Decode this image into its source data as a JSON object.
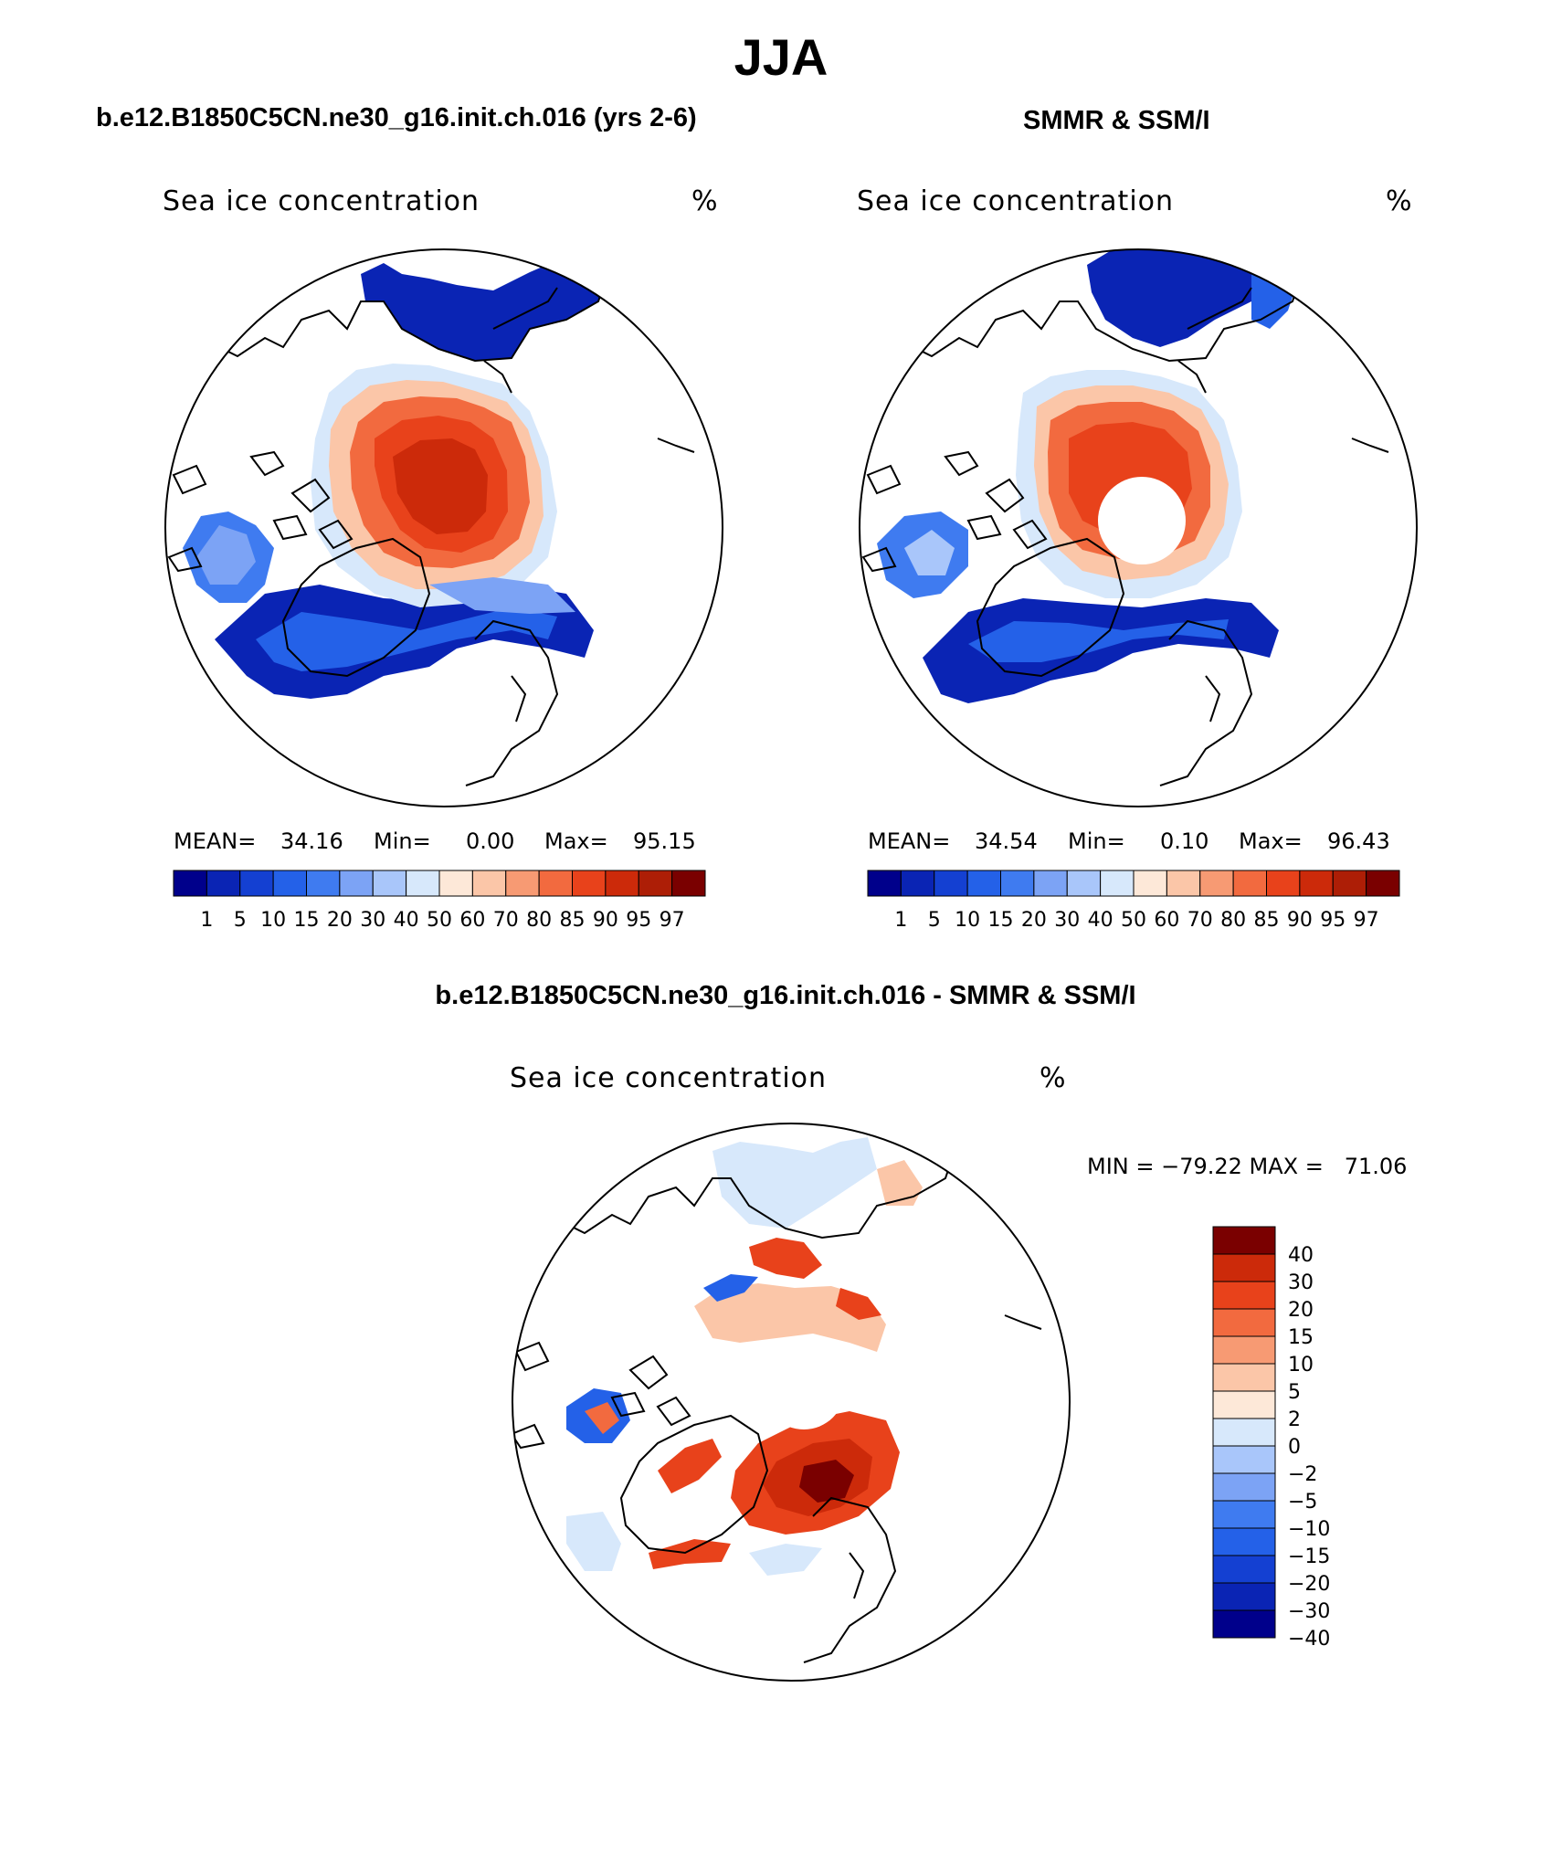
{
  "figure": {
    "title": "JJA",
    "colors": {
      "ice_scale": [
        "#00008b",
        "#0a24b4",
        "#1440d2",
        "#2461e8",
        "#3f7bf0",
        "#7ca3f5",
        "#a9c6fa",
        "#d7e8fb",
        "#fde8d8",
        "#fbc6a8",
        "#f79a73",
        "#f26a3f",
        "#e8421b",
        "#cc2a0a",
        "#ad1e06",
        "#7a0000"
      ],
      "diff_scale": [
        "#00008b",
        "#0a24b4",
        "#1440d2",
        "#2461e8",
        "#3f7bf0",
        "#7ca3f5",
        "#a9c6fa",
        "#d7e8fb",
        "#fde8d8",
        "#fbc6a8",
        "#f79a73",
        "#f26a3f",
        "#e8421b",
        "#cc2a0a",
        "#7a0000"
      ],
      "land_outline": "#000000",
      "ocean": "#ffffff"
    }
  },
  "panels": {
    "model": {
      "title": "b.e12.B1850C5CN.ne30_g16.init.ch.016 (yrs 2-6)",
      "variable": "Sea ice concentration",
      "units": "%",
      "stats": {
        "mean_label": "MEAN=",
        "mean": "34.16",
        "min_label": "Min=",
        "min": "0.00",
        "max_label": "Max=",
        "max": "95.15"
      },
      "colorbar_labels": [
        "1",
        "5",
        "10",
        "15",
        "20",
        "30",
        "40",
        "50",
        "60",
        "70",
        "80",
        "85",
        "90",
        "95",
        "97"
      ]
    },
    "obs": {
      "title": "SMMR & SSM/I",
      "variable": "Sea ice concentration",
      "units": "%",
      "stats": {
        "mean_label": "MEAN=",
        "mean": "34.54",
        "min_label": "Min=",
        "min": "0.10",
        "max_label": "Max=",
        "max": "96.43"
      },
      "colorbar_labels": [
        "1",
        "5",
        "10",
        "15",
        "20",
        "30",
        "40",
        "50",
        "60",
        "70",
        "80",
        "85",
        "90",
        "95",
        "97"
      ]
    },
    "difference": {
      "title": "b.e12.B1850C5CN.ne30_g16.init.ch.016 - SMMR & SSM/I",
      "variable": "Sea ice concentration",
      "units": "%",
      "minmax": "MIN = −79.22 MAX =   71.06",
      "colorbar_labels": [
        "40",
        "30",
        "20",
        "15",
        "10",
        "5",
        "2",
        "0",
        "−2",
        "−5",
        "−10",
        "−15",
        "−20",
        "−30",
        "−40"
      ]
    }
  }
}
